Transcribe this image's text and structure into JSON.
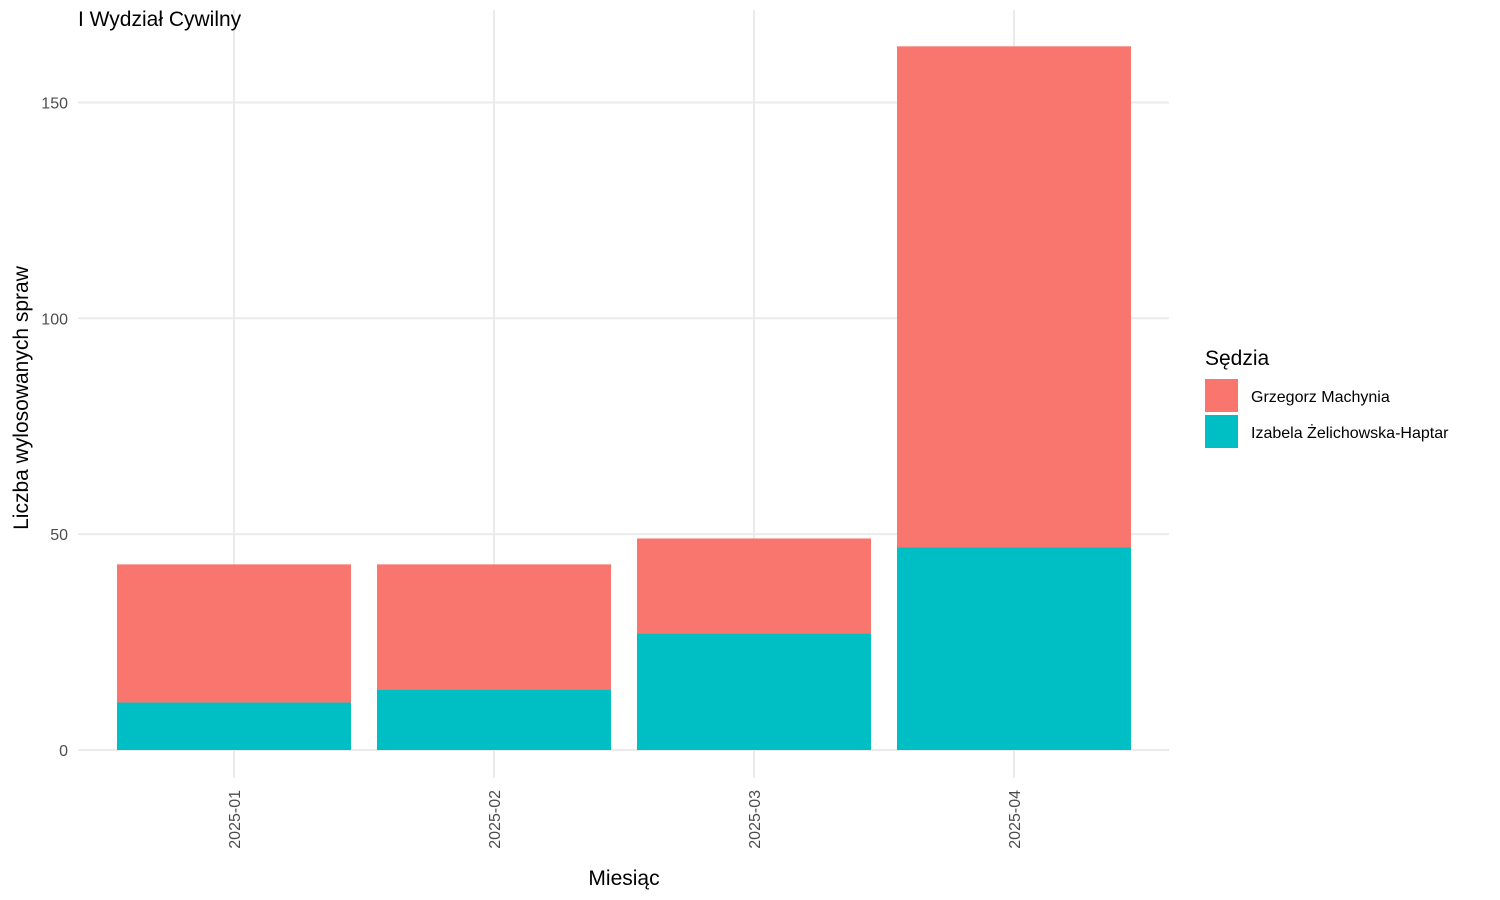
{
  "chart_data": {
    "type": "bar",
    "stacked": true,
    "title": "I Wydział Cywilny",
    "xlabel": "Miesiąc",
    "ylabel": "Liczba wylosowanych spraw",
    "categories": [
      "2025-01",
      "2025-02",
      "2025-03",
      "2025-04"
    ],
    "series": [
      {
        "name": "Izabela Żelichowska-Haptar",
        "color": "#00BFC4",
        "values": [
          11,
          14,
          27,
          47
        ]
      },
      {
        "name": "Grzegorz Machynia",
        "color": "#F8766D",
        "values": [
          32,
          29,
          22,
          116
        ]
      }
    ],
    "ylim": [
      0,
      170
    ],
    "yticks": [
      0,
      50,
      100,
      150
    ],
    "legend": {
      "title": "Sędzia",
      "placement": "right",
      "entries": [
        "Grzegorz Machynia",
        "Izabela Żelichowska-Haptar"
      ]
    },
    "grid": true
  }
}
